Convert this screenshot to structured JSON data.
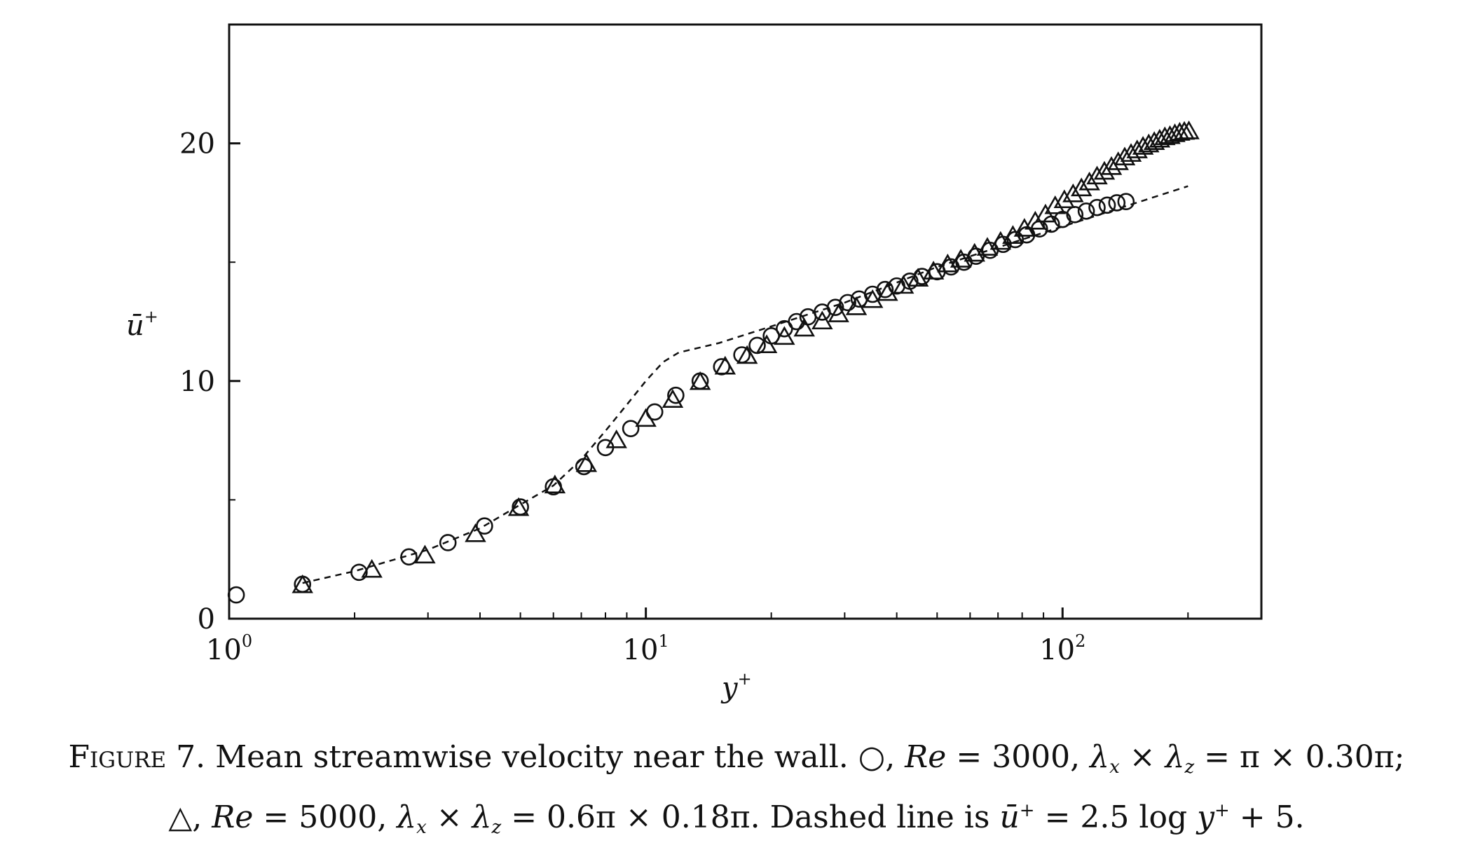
{
  "chart_data": {
    "type": "scatter",
    "xscale": "log",
    "xlim": [
      1,
      300
    ],
    "ylim": [
      0,
      25
    ],
    "xticks": [
      1,
      10,
      100
    ],
    "xtick_labels": [
      {
        "base": "10",
        "exp": "0"
      },
      {
        "base": "10",
        "exp": "1"
      },
      {
        "base": "10",
        "exp": "2"
      }
    ],
    "yticks": [
      0,
      10,
      20
    ],
    "ytick_labels": [
      "0",
      "10",
      "20"
    ],
    "xlabel": {
      "base": "y",
      "sup": "+"
    },
    "ylabel": {
      "base": "ū",
      "sup": "+"
    },
    "series": [
      {
        "marker": "circle",
        "x": [
          1.04,
          1.5,
          2.05,
          2.7,
          3.35,
          4.1,
          5.0,
          6.0,
          7.1,
          8.0,
          9.2,
          10.5,
          11.8,
          13.5,
          15.2,
          17.0,
          18.5,
          20.0,
          21.5,
          23.0,
          24.5,
          26.5,
          28.5,
          30.5,
          32.5,
          35.0,
          37.5,
          40.0,
          43.0,
          46.0,
          50.0,
          54.0,
          58.0,
          62.0,
          67.0,
          72.0,
          77.0,
          82.0,
          88.0,
          94.0,
          100.0,
          107.0,
          114.0,
          121.0,
          128.0,
          135.0,
          142.0
        ],
        "y": [
          1.0,
          1.45,
          1.95,
          2.6,
          3.2,
          3.9,
          4.7,
          5.55,
          6.4,
          7.2,
          8.0,
          8.7,
          9.4,
          10.0,
          10.6,
          11.1,
          11.5,
          11.9,
          12.2,
          12.5,
          12.7,
          12.9,
          13.1,
          13.3,
          13.45,
          13.65,
          13.85,
          14.0,
          14.2,
          14.4,
          14.6,
          14.8,
          15.0,
          15.25,
          15.5,
          15.75,
          15.95,
          16.15,
          16.4,
          16.6,
          16.8,
          17.0,
          17.15,
          17.3,
          17.4,
          17.5,
          17.55
        ]
      },
      {
        "marker": "triangle",
        "x": [
          1.5,
          2.2,
          2.95,
          3.9,
          4.95,
          6.05,
          7.2,
          8.5,
          10.0,
          11.6,
          13.5,
          15.5,
          17.5,
          19.5,
          21.5,
          24.0,
          26.5,
          29.0,
          32.0,
          35.0,
          38.0,
          41.5,
          45.0,
          49.0,
          53.0,
          57.0,
          61.5,
          66.0,
          71.0,
          76.0,
          81.0,
          86.0,
          91.0,
          96.0,
          101.0,
          106.0,
          111.0,
          116.0,
          121.0,
          126.0,
          131.0,
          136.0,
          141.0,
          146.0,
          151.0,
          156.0,
          161.0,
          166.0,
          171.0,
          176.0,
          181.0,
          186.0,
          191.0,
          196.0,
          201.0
        ],
        "y": [
          1.4,
          2.05,
          2.65,
          3.55,
          4.65,
          5.6,
          6.5,
          7.5,
          8.4,
          9.2,
          9.95,
          10.6,
          11.05,
          11.5,
          11.85,
          12.2,
          12.5,
          12.8,
          13.1,
          13.4,
          13.7,
          14.0,
          14.3,
          14.6,
          14.9,
          15.1,
          15.35,
          15.6,
          15.85,
          16.1,
          16.4,
          16.7,
          17.0,
          17.35,
          17.6,
          17.85,
          18.1,
          18.35,
          18.6,
          18.8,
          19.0,
          19.2,
          19.4,
          19.55,
          19.7,
          19.85,
          19.95,
          20.05,
          20.15,
          20.25,
          20.3,
          20.38,
          20.44,
          20.48,
          20.5
        ]
      }
    ],
    "reference_line": {
      "style": "dashed",
      "x": [
        1.5,
        2.0,
        3.0,
        4.0,
        5.0,
        6.0,
        7.0,
        8.0,
        9.0,
        10.0,
        11.0,
        12.0,
        15.0,
        20.0,
        30.0,
        50.0,
        100.0,
        200.0
      ],
      "y": [
        1.5,
        2.0,
        2.9,
        3.8,
        4.8,
        5.6,
        6.7,
        7.9,
        9.0,
        10.0,
        10.8,
        11.2,
        11.6,
        12.3,
        13.3,
        14.8,
        16.5,
        18.2
      ]
    }
  },
  "caption": {
    "label": "Figure 7.",
    "line1_text": "Mean streamwise velocity near the wall.",
    "s1_re": "Re",
    "s1_re_value": "= 3000,",
    "s1_lambda_expr": "= π × 0.30π;",
    "s2_re": "Re",
    "s2_re_value": "= 5000,",
    "s2_lambda_expr": "= 0.6π × 0.18π.",
    "line2_tail": "Dashed line is",
    "formula_lhs": "ū",
    "formula_mid": "= 2.5 log",
    "formula_y": "y",
    "formula_end": "+ 5."
  }
}
